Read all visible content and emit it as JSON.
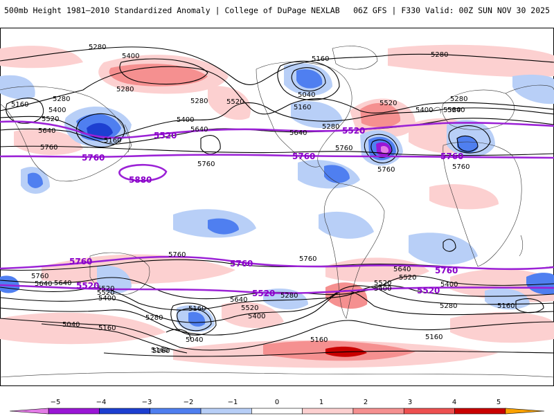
{
  "header": {
    "title_left": "500mb Height 1981–2010 Standardized Anomaly | College of DuPage NEXLAB",
    "title_right": "06Z GFS | F330 Valid: 00Z SUN NOV 30 2025"
  },
  "colors": {
    "neg5": "#e37be6",
    "neg4": "#9a16d6",
    "neg3": "#1d3fd1",
    "neg2": "#4f7ff0",
    "neg1": "#b8cff7",
    "pos1": "#fcd0d0",
    "pos2": "#f59090",
    "pos3": "#ee5050",
    "pos4": "#c90000",
    "pos5": "#fba200",
    "highlight_contour": "#9b22d6",
    "contour": "#000000"
  },
  "contour_labels": [
    "5280",
    "5400",
    "5280",
    "5160",
    "5280",
    "5280",
    "5160",
    "5400",
    "5520",
    "5640",
    "5160",
    "5760",
    "5760",
    "5520",
    "5400",
    "5280",
    "5040",
    "5160",
    "5520",
    "5400",
    "5640",
    "5280",
    "5640",
    "5760",
    "5520",
    "5280",
    "5640",
    "5760",
    "5760",
    "5760",
    "5640",
    "5520",
    "5400",
    "5640",
    "5520",
    "5400",
    "5520",
    "5280",
    "5040",
    "5160",
    "5160",
    "5760",
    "5640",
    "5520",
    "5400",
    "5280",
    "5040",
    "5160",
    "5160",
    "5760",
    "5640",
    "5520",
    "5400",
    "5280",
    "5160",
    "5160",
    "5160"
  ],
  "highlight_labels": [
    "5520",
    "5520",
    "5760",
    "5760",
    "5760",
    "5880",
    "5760",
    "5760",
    "5760",
    "5520",
    "5520",
    "5520"
  ],
  "colorbar": {
    "ticks": [
      "−5",
      "−4",
      "−3",
      "−2",
      "−1",
      "0",
      "1",
      "2",
      "3",
      "4",
      "5"
    ]
  }
}
